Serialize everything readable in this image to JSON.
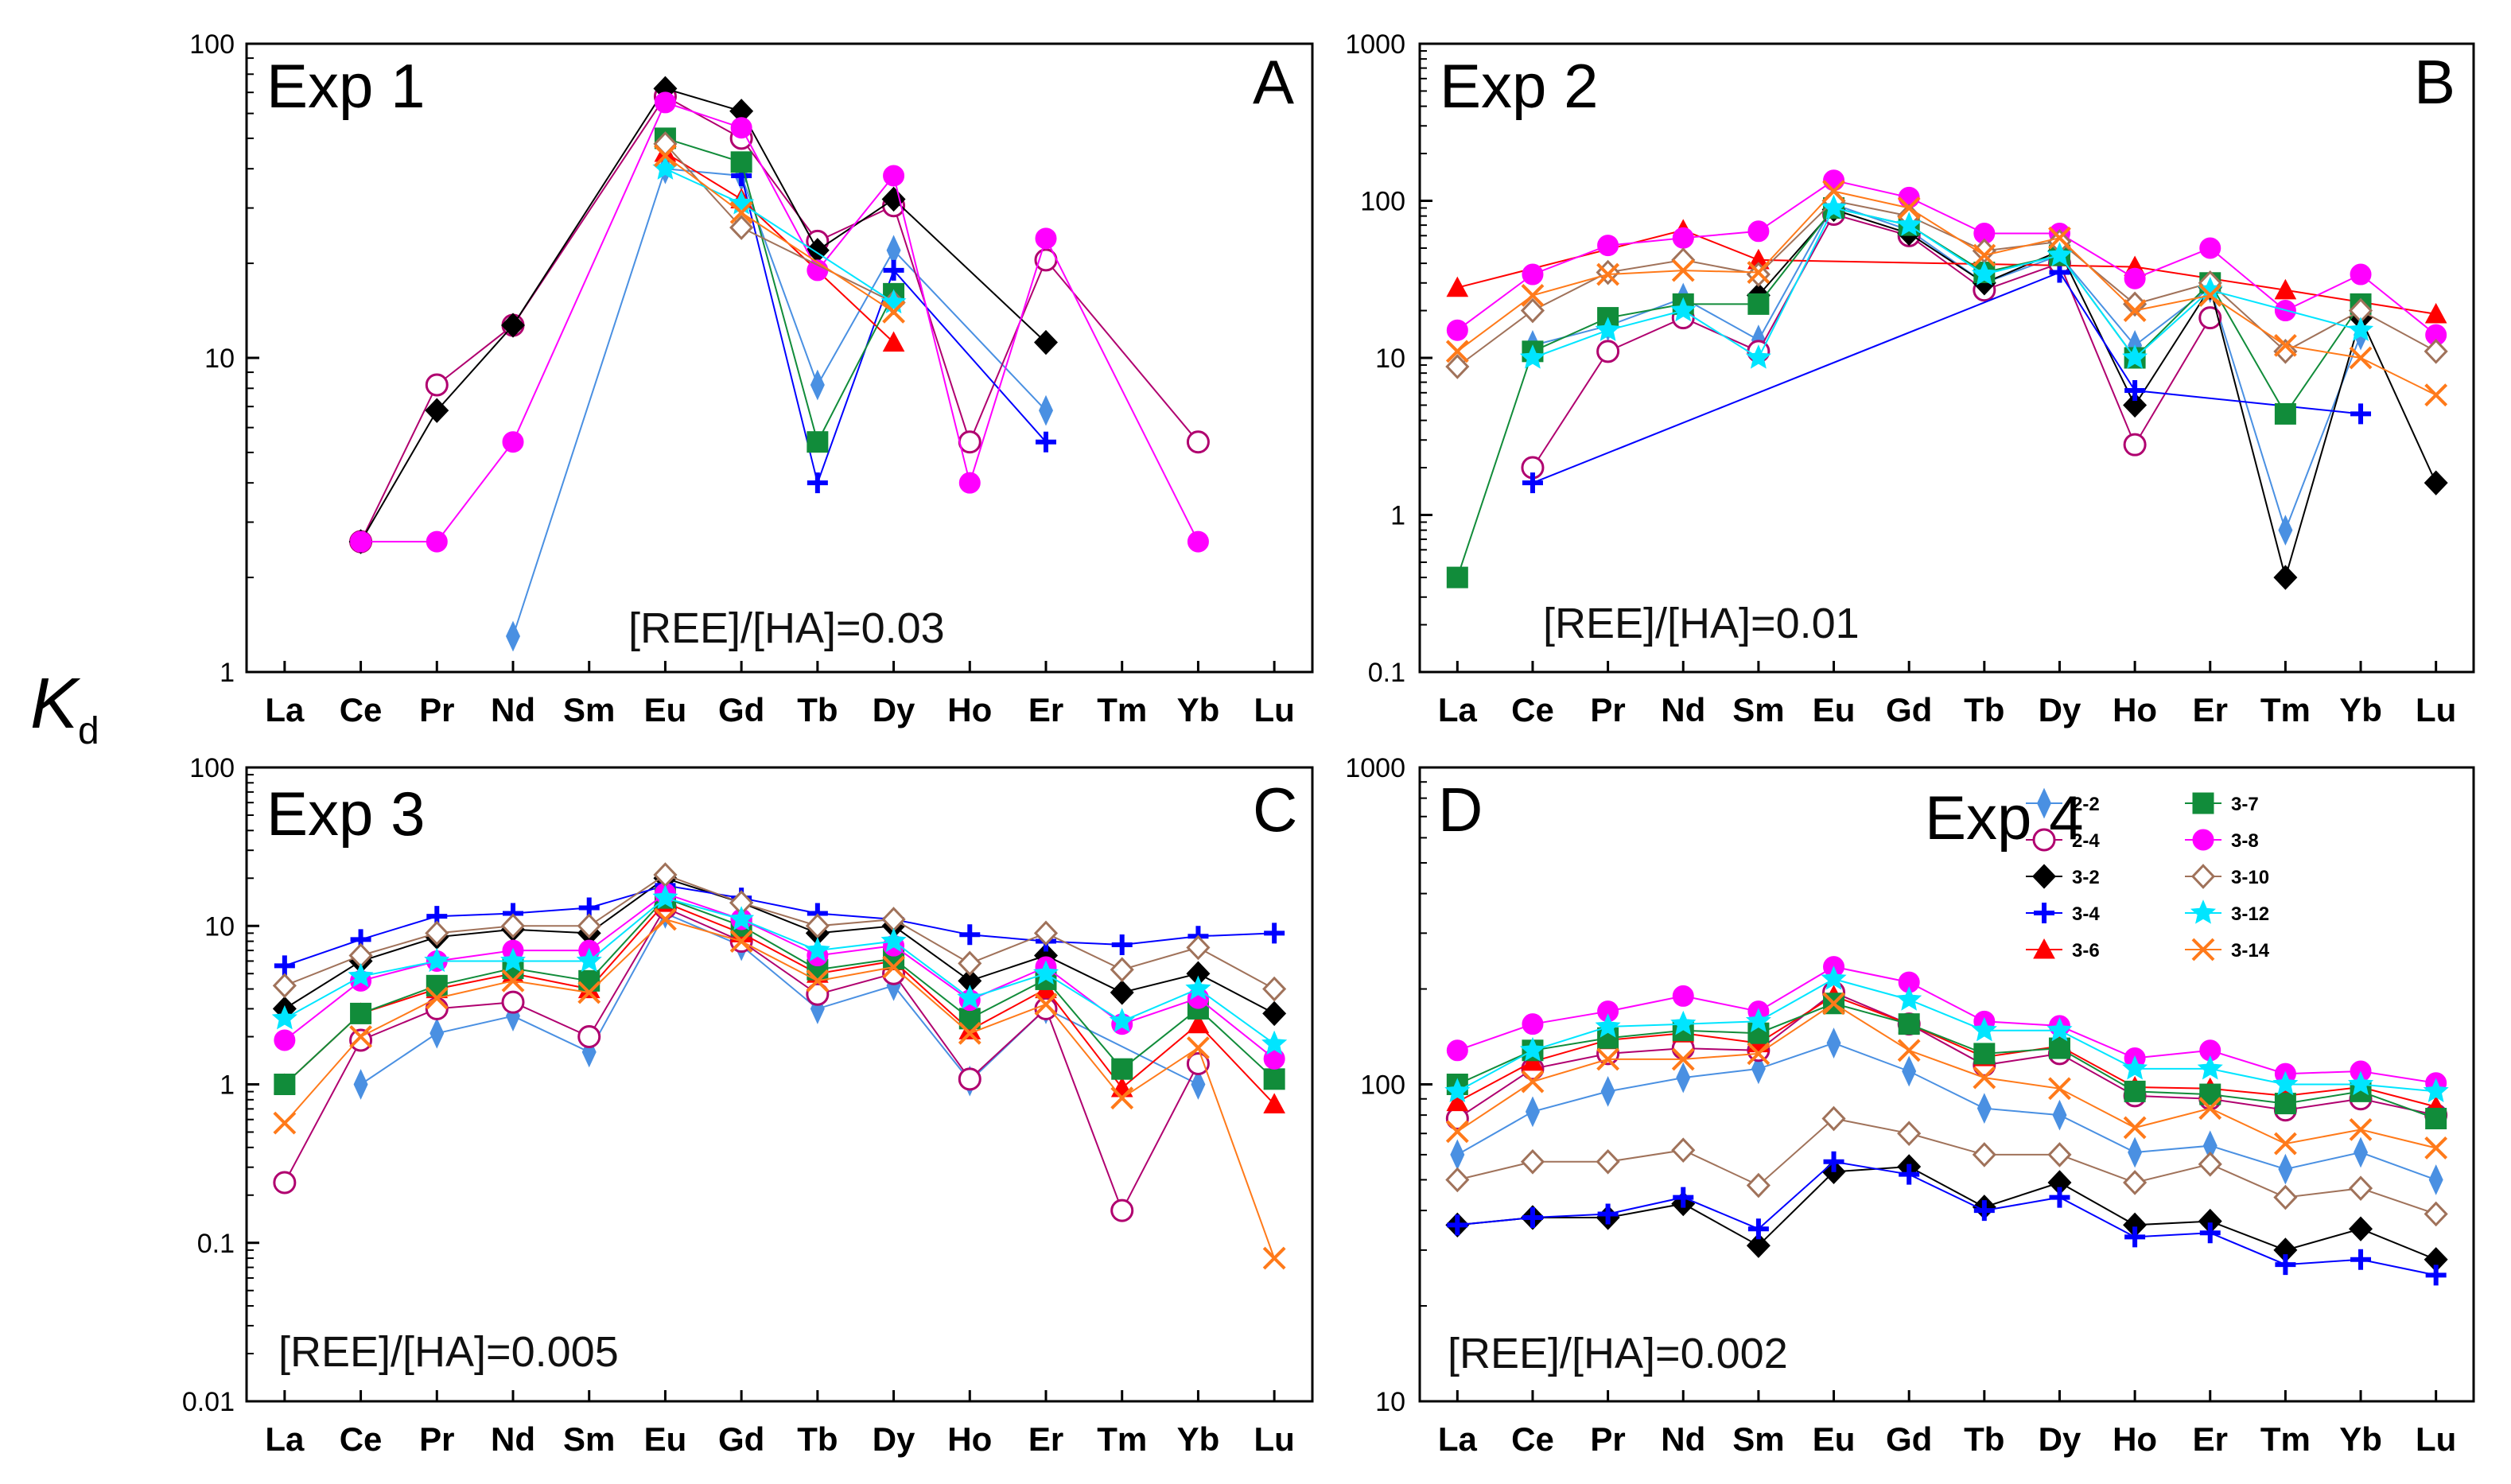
{
  "figure": {
    "ylabel_main": "K",
    "ylabel_sub": "d",
    "colors": {
      "2-2": "#4a90e2",
      "2-4": "#b0006f",
      "3-2": "#000000",
      "3-4": "#0000ff",
      "3-6": "#ff0000",
      "3-7": "#118c3a",
      "3-8": "#ff00ff",
      "3-10": "#a0725a",
      "3-12": "#00e5ff",
      "3-14": "#ff7a1a"
    },
    "markers": {
      "2-2": "diamond",
      "2-4": "circle-open",
      "3-2": "diamond-filled",
      "3-4": "plus",
      "3-6": "triangle",
      "3-7": "square",
      "3-8": "circle",
      "3-10": "diamond-open",
      "3-12": "star",
      "3-14": "x"
    }
  },
  "chart_data": [
    {
      "type": "line",
      "panel_title": "Exp 1",
      "panel_letter": "A",
      "annotation": "[REE]/[HA]=0.03",
      "yscale": "log",
      "ylim": [
        1,
        100
      ],
      "ytick_labels": [
        "1",
        "10",
        "100"
      ],
      "categories": [
        "La",
        "Ce",
        "Pr",
        "Nd",
        "Sm",
        "Eu",
        "Gd",
        "Tb",
        "Dy",
        "Ho",
        "Er",
        "Tm",
        "Yb",
        "Lu"
      ],
      "series": [
        {
          "name": "2-2",
          "values": [
            null,
            null,
            null,
            1.3,
            null,
            40,
            38,
            8.2,
            22,
            null,
            6.8,
            null,
            null,
            null
          ]
        },
        {
          "name": "2-4",
          "values": [
            null,
            2.6,
            8.2,
            12.7,
            null,
            68,
            50,
            23.5,
            30.5,
            5.4,
            20.5,
            null,
            5.4,
            null
          ]
        },
        {
          "name": "3-2",
          "values": [
            null,
            2.6,
            6.8,
            12.7,
            null,
            72,
            61,
            22,
            32,
            null,
            11.2,
            null,
            null,
            null
          ]
        },
        {
          "name": "3-4",
          "values": [
            null,
            null,
            null,
            null,
            null,
            null,
            38,
            4.0,
            19,
            null,
            5.4,
            null,
            null,
            null
          ]
        },
        {
          "name": "3-6",
          "values": [
            null,
            null,
            null,
            null,
            null,
            45,
            32,
            null,
            11.2,
            null,
            null,
            null,
            null,
            null
          ]
        },
        {
          "name": "3-7",
          "values": [
            null,
            null,
            null,
            null,
            null,
            50,
            42,
            5.4,
            16,
            null,
            null,
            null,
            null,
            null
          ]
        },
        {
          "name": "3-8",
          "values": [
            null,
            2.6,
            2.6,
            5.4,
            null,
            65,
            54,
            19,
            38,
            4.0,
            24,
            null,
            2.6,
            null
          ]
        },
        {
          "name": "3-10",
          "values": [
            null,
            null,
            null,
            null,
            null,
            48,
            26,
            null,
            15,
            null,
            null,
            null,
            null,
            null
          ]
        },
        {
          "name": "3-12",
          "values": [
            null,
            null,
            null,
            null,
            null,
            40,
            31,
            null,
            15,
            null,
            null,
            null,
            null,
            null
          ]
        },
        {
          "name": "3-14",
          "values": [
            null,
            null,
            null,
            null,
            null,
            44,
            29,
            null,
            14,
            null,
            null,
            null,
            null,
            null
          ]
        }
      ]
    },
    {
      "type": "line",
      "panel_title": "Exp 2",
      "panel_letter": "B",
      "annotation": "[REE]/[HA]=0.01",
      "yscale": "log",
      "ylim": [
        0.1,
        1000
      ],
      "ytick_labels": [
        "0.1",
        "1",
        "10",
        "100",
        "1000"
      ],
      "categories": [
        "La",
        "Ce",
        "Pr",
        "Nd",
        "Sm",
        "Eu",
        "Gd",
        "Tb",
        "Dy",
        "Ho",
        "Er",
        "Tm",
        "Yb",
        "Lu"
      ],
      "series": [
        {
          "name": "2-2",
          "values": [
            null,
            12,
            16,
            24,
            13,
            95,
            65,
            30,
            45,
            12,
            28,
            0.8,
            14,
            null
          ]
        },
        {
          "name": "2-4",
          "values": [
            null,
            2.0,
            11,
            18,
            11,
            82,
            60,
            27,
            40,
            2.8,
            18,
            null,
            null,
            null
          ]
        },
        {
          "name": "3-2",
          "values": [
            null,
            null,
            null,
            null,
            25,
            88,
            62,
            30,
            48,
            5,
            28,
            0.4,
            18,
            1.6
          ]
        },
        {
          "name": "3-4",
          "values": [
            null,
            1.6,
            null,
            null,
            null,
            null,
            null,
            null,
            35,
            6.2,
            null,
            null,
            4.4,
            null
          ]
        },
        {
          "name": "3-6",
          "values": [
            28,
            null,
            null,
            65,
            42,
            null,
            null,
            null,
            null,
            38,
            null,
            27,
            null,
            19
          ]
        },
        {
          "name": "3-7",
          "values": [
            0.4,
            11,
            18,
            22,
            22,
            90,
            70,
            35,
            45,
            10,
            30,
            4.4,
            22,
            null
          ]
        },
        {
          "name": "3-8",
          "values": [
            15,
            34,
            52,
            58,
            64,
            135,
            105,
            62,
            62,
            32,
            50,
            20,
            34,
            14
          ]
        },
        {
          "name": "3-10",
          "values": [
            8.8,
            20,
            35,
            42,
            34,
            100,
            80,
            48,
            55,
            22,
            30,
            11,
            20,
            11
          ]
        },
        {
          "name": "3-12",
          "values": [
            null,
            10,
            15,
            20,
            10,
            90,
            70,
            34,
            45,
            10,
            27,
            null,
            15,
            null
          ]
        },
        {
          "name": "3-14",
          "values": [
            11,
            25,
            34,
            36,
            35,
            115,
            90,
            45,
            58,
            20,
            25,
            12,
            10,
            5.8
          ]
        }
      ]
    },
    {
      "type": "line",
      "panel_title": "Exp 3",
      "panel_letter": "C",
      "annotation": "[REE]/[HA]=0.005",
      "yscale": "log",
      "ylim": [
        0.01,
        100
      ],
      "ytick_labels": [
        "0.01",
        "0.1",
        "1",
        "10",
        "100"
      ],
      "categories": [
        "La",
        "Ce",
        "Pr",
        "Nd",
        "Sm",
        "Eu",
        "Gd",
        "Tb",
        "Dy",
        "Ho",
        "Er",
        "Tm",
        "Yb",
        "Lu"
      ],
      "series": [
        {
          "name": "2-2",
          "values": [
            null,
            1.0,
            2.1,
            2.7,
            1.6,
            12,
            7.5,
            3.0,
            4.2,
            1.05,
            3.0,
            null,
            1.0,
            null
          ]
        },
        {
          "name": "2-4",
          "values": [
            0.24,
            1.9,
            3.0,
            3.3,
            2.0,
            13,
            8.0,
            3.7,
            5.0,
            1.08,
            3.0,
            0.16,
            1.35,
            null
          ]
        },
        {
          "name": "3-2",
          "values": [
            3.0,
            6.0,
            8.5,
            9.5,
            9.0,
            20,
            14,
            9.0,
            10,
            4.5,
            6.5,
            3.8,
            5.0,
            2.8
          ]
        },
        {
          "name": "3-4",
          "values": [
            5.6,
            8.2,
            11.5,
            12,
            13,
            18,
            15,
            12,
            11,
            8.8,
            8.0,
            7.6,
            8.6,
            9.0
          ]
        },
        {
          "name": "3-6",
          "values": [
            1.0,
            2.8,
            4.0,
            5.0,
            4.0,
            14,
            9.0,
            5.0,
            6.0,
            2.2,
            4.0,
            0.95,
            2.4,
            0.75
          ]
        },
        {
          "name": "3-7",
          "values": [
            1.0,
            2.8,
            4.2,
            5.4,
            4.5,
            15,
            10,
            5.3,
            6.2,
            2.6,
            4.6,
            1.25,
            3.0,
            1.08
          ]
        },
        {
          "name": "3-8",
          "values": [
            1.9,
            4.5,
            6.0,
            7.0,
            7.0,
            16,
            11,
            6.5,
            7.5,
            3.4,
            5.5,
            2.4,
            3.5,
            1.45
          ]
        },
        {
          "name": "3-10",
          "values": [
            4.2,
            6.5,
            9.0,
            10,
            10,
            21,
            14,
            10,
            11,
            5.8,
            9.0,
            5.3,
            7.3,
            4.0
          ]
        },
        {
          "name": "3-12",
          "values": [
            2.6,
            4.8,
            6.0,
            6.0,
            6.0,
            15,
            11,
            7.0,
            8.0,
            3.5,
            5.0,
            2.5,
            4.0,
            1.8
          ]
        },
        {
          "name": "3-14",
          "values": [
            0.57,
            2.0,
            3.5,
            4.5,
            3.8,
            11,
            8.0,
            4.5,
            5.5,
            2.1,
            3.2,
            0.82,
            1.7,
            0.08
          ]
        }
      ]
    },
    {
      "type": "line",
      "panel_title": "Exp 4",
      "panel_letter": "D",
      "annotation": "[REE]/[HA]=0.002",
      "yscale": "log",
      "ylim": [
        10,
        1000
      ],
      "ytick_labels": [
        "10",
        "100",
        "1000"
      ],
      "legend_position": "upper-right",
      "categories": [
        "La",
        "Ce",
        "Pr",
        "Nd",
        "Sm",
        "Eu",
        "Gd",
        "Tb",
        "Dy",
        "Ho",
        "Er",
        "Tm",
        "Yb",
        "Lu"
      ],
      "series": [
        {
          "name": "2-2",
          "values": [
            60,
            82,
            95,
            105,
            112,
            135,
            110,
            84,
            80,
            61,
            64,
            54,
            61,
            50
          ]
        },
        {
          "name": "2-4",
          "values": [
            78,
            112,
            125,
            130,
            128,
            195,
            155,
            115,
            125,
            92,
            90,
            83,
            90,
            80
          ]
        },
        {
          "name": "3-2",
          "values": [
            36,
            38,
            38,
            42,
            31,
            53,
            55,
            41,
            49,
            36,
            37,
            30,
            35,
            28
          ]
        },
        {
          "name": "3-4",
          "values": [
            36,
            38,
            39,
            44,
            35,
            57,
            52,
            40,
            44,
            33,
            34,
            27,
            28,
            25
          ]
        },
        {
          "name": "3-6",
          "values": [
            88,
            118,
            138,
            145,
            135,
            190,
            155,
            122,
            132,
            98,
            97,
            92,
            98,
            85
          ]
        },
        {
          "name": "3-7",
          "values": [
            100,
            128,
            140,
            148,
            145,
            180,
            155,
            125,
            130,
            95,
            93,
            87,
            95,
            78
          ]
        },
        {
          "name": "3-8",
          "values": [
            128,
            155,
            170,
            190,
            170,
            235,
            210,
            158,
            153,
            121,
            128,
            108,
            110,
            101
          ]
        },
        {
          "name": "3-10",
          "values": [
            50,
            57,
            57,
            62,
            48,
            78,
            70,
            60,
            60,
            49,
            56,
            44,
            47,
            39
          ]
        },
        {
          "name": "3-12",
          "values": [
            95,
            128,
            152,
            155,
            158,
            215,
            185,
            148,
            148,
            112,
            112,
            100,
            100,
            95
          ]
        },
        {
          "name": "3-14",
          "values": [
            71,
            102,
            120,
            120,
            125,
            180,
            128,
            105,
            97,
            73,
            84,
            65,
            72,
            63
          ]
        }
      ]
    }
  ]
}
